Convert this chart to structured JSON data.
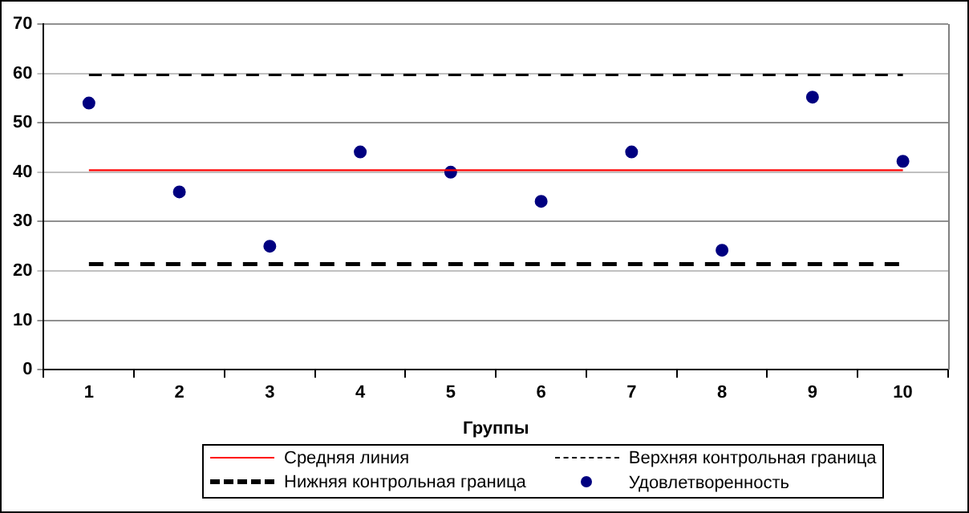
{
  "chart_data": {
    "type": "scatter",
    "xlabel": "Группы",
    "categories": [
      "1",
      "2",
      "3",
      "4",
      "5",
      "6",
      "7",
      "8",
      "9",
      "10"
    ],
    "series": [
      {
        "name": "Средняя линия",
        "type": "line",
        "color": "#ff0000",
        "marker": "none",
        "line_style": "solid",
        "values": [
          40.4,
          40.4,
          40.4,
          40.4,
          40.4,
          40.4,
          40.4,
          40.4,
          40.4,
          40.4
        ]
      },
      {
        "name": "Верхняя контрольная граница",
        "type": "line",
        "color": "#000000",
        "marker": "none",
        "line_style": "dashed",
        "values": [
          59.7,
          59.7,
          59.7,
          59.7,
          59.7,
          59.7,
          59.7,
          59.7,
          59.7,
          59.7
        ]
      },
      {
        "name": "Нижняя контрольная граница",
        "type": "line",
        "color": "#000000",
        "marker": "none",
        "line_style": "dashed",
        "values": [
          21.4,
          21.4,
          21.4,
          21.4,
          21.4,
          21.4,
          21.4,
          21.4,
          21.4,
          21.4
        ]
      },
      {
        "name": "Удовлетворенность",
        "type": "scatter",
        "color": "#000080",
        "marker": "circle",
        "values": [
          54,
          36,
          25,
          44.1,
          40,
          34.1,
          44.1,
          24.2,
          55.2,
          42.2
        ]
      }
    ],
    "ylim": [
      0,
      70
    ],
    "yticks": [
      0,
      10,
      20,
      30,
      40,
      50,
      60,
      70
    ],
    "grid": "y",
    "legend": "bottom"
  }
}
